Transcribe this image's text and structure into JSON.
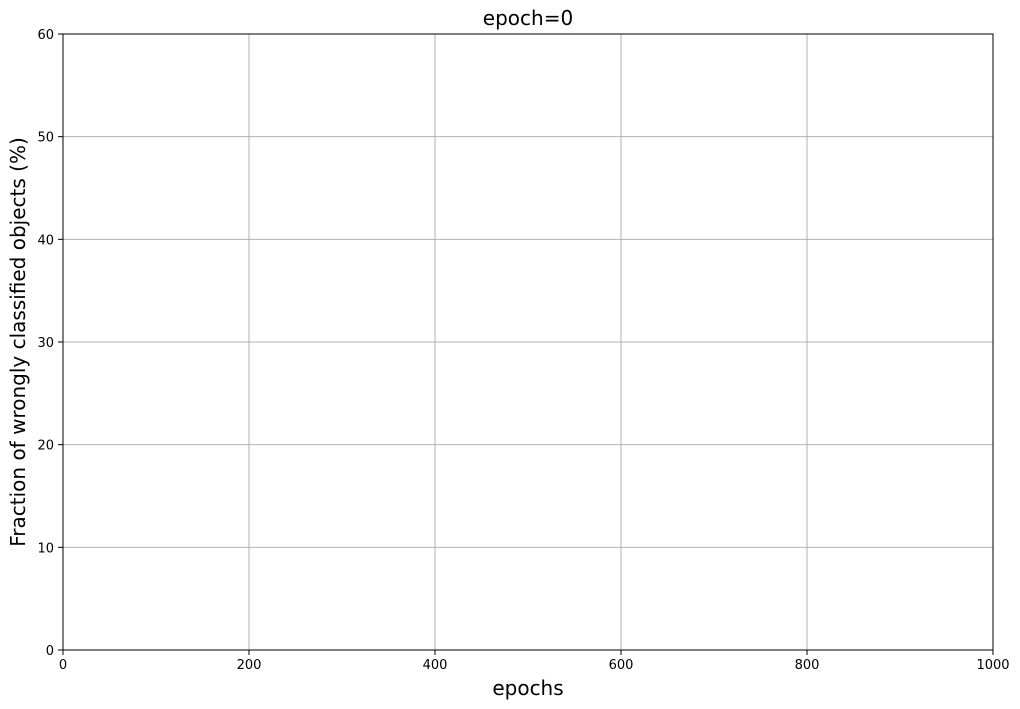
{
  "chart_data": {
    "type": "line",
    "title": "epoch=0",
    "xlabel": "epochs",
    "ylabel": "Fraction of wrongly classified objects (%)",
    "xlim": [
      0,
      1000
    ],
    "ylim": [
      0,
      60
    ],
    "x_ticks": [
      0,
      200,
      400,
      600,
      800,
      1000
    ],
    "y_ticks": [
      0,
      10,
      20,
      30,
      40,
      50,
      60
    ],
    "grid": true,
    "series": []
  }
}
